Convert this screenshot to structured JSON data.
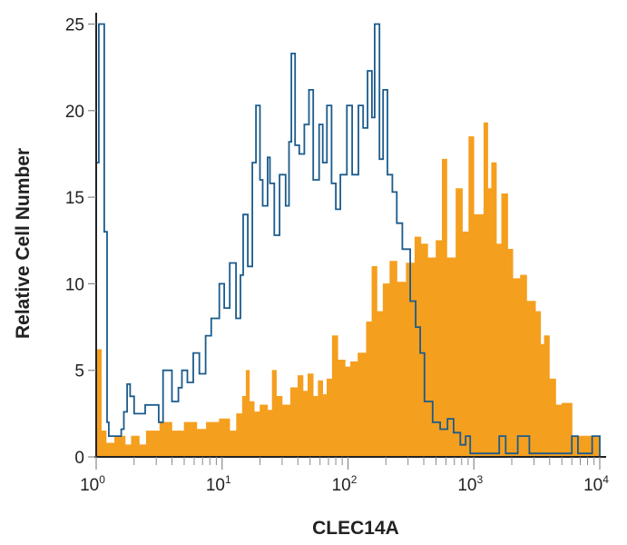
{
  "chart_data": {
    "type": "histogram",
    "title": "",
    "xlabel": "CLEC14A",
    "ylabel": "Relative Cell Number",
    "x_scale": "log",
    "xlim": [
      1,
      10000
    ],
    "ylim": [
      0,
      25
    ],
    "x_ticks": [
      {
        "base": "10",
        "exp": "0",
        "value": 1
      },
      {
        "base": "10",
        "exp": "1",
        "value": 10
      },
      {
        "base": "10",
        "exp": "2",
        "value": 100
      },
      {
        "base": "10",
        "exp": "3",
        "value": 1000
      },
      {
        "base": "10",
        "exp": "4",
        "value": 10000
      }
    ],
    "y_ticks": [
      "0",
      "5",
      "10",
      "15",
      "20",
      "25"
    ],
    "grid": false,
    "legend": "none",
    "series": [
      {
        "style": "filled",
        "color": "#f59f1e",
        "points": [
          [
            1.0,
            6.2
          ],
          [
            1.1,
            1.5
          ],
          [
            1.2,
            0.8
          ],
          [
            1.4,
            1.2
          ],
          [
            1.7,
            0.7
          ],
          [
            1.9,
            1.2
          ],
          [
            2.2,
            0.7
          ],
          [
            2.5,
            1.5
          ],
          [
            3.2,
            2.0
          ],
          [
            4.0,
            1.5
          ],
          [
            5.0,
            2.0
          ],
          [
            6.3,
            1.6
          ],
          [
            7.5,
            2.0
          ],
          [
            9.5,
            2.2
          ],
          [
            11.5,
            1.5
          ],
          [
            13,
            2.5
          ],
          [
            14.5,
            3.5
          ],
          [
            15.5,
            5
          ],
          [
            16.5,
            3.2
          ],
          [
            18,
            2.6
          ],
          [
            20,
            3
          ],
          [
            23,
            2.7
          ],
          [
            25,
            5
          ],
          [
            27,
            3.5
          ],
          [
            30,
            3
          ],
          [
            35,
            4
          ],
          [
            40,
            4.7
          ],
          [
            44,
            3.8
          ],
          [
            48,
            4.8
          ],
          [
            53,
            3.5
          ],
          [
            58,
            4.4
          ],
          [
            63,
            3.6
          ],
          [
            68,
            4.5
          ],
          [
            75,
            7
          ],
          [
            83,
            5.6
          ],
          [
            95,
            5.2
          ],
          [
            105,
            5.5
          ],
          [
            120,
            6
          ],
          [
            140,
            7.8
          ],
          [
            155,
            11
          ],
          [
            170,
            8.4
          ],
          [
            190,
            10
          ],
          [
            215,
            11.3
          ],
          [
            245,
            10.1
          ],
          [
            290,
            11.2
          ],
          [
            340,
            12.7
          ],
          [
            380,
            12.3
          ],
          [
            430,
            11.5
          ],
          [
            500,
            12.5
          ],
          [
            560,
            17.2
          ],
          [
            610,
            11.5
          ],
          [
            720,
            15.5
          ],
          [
            810,
            13
          ],
          [
            910,
            18.5
          ],
          [
            1000,
            14
          ],
          [
            1200,
            19.3
          ],
          [
            1290,
            15.5
          ],
          [
            1380,
            17
          ],
          [
            1510,
            12.3
          ],
          [
            1660,
            15.2
          ],
          [
            1860,
            12
          ],
          [
            2040,
            10.3
          ],
          [
            2340,
            10.5
          ],
          [
            2630,
            9
          ],
          [
            3090,
            8.4
          ],
          [
            3390,
            6.5
          ],
          [
            3630,
            7
          ],
          [
            3980,
            4.5
          ],
          [
            4470,
            3
          ],
          [
            5000,
            3.1
          ],
          [
            5750,
            3.1
          ],
          [
            6030,
            1.2
          ],
          [
            10000,
            1.2
          ]
        ]
      },
      {
        "style": "outline",
        "color": "#1b5b8c",
        "points": [
          [
            1.0,
            17
          ],
          [
            1.05,
            25
          ],
          [
            1.16,
            13
          ],
          [
            1.22,
            2
          ],
          [
            1.26,
            1.2
          ],
          [
            1.58,
            1.6
          ],
          [
            1.66,
            2.6
          ],
          [
            1.76,
            4.2
          ],
          [
            1.86,
            3.5
          ],
          [
            2.0,
            2.5
          ],
          [
            2.45,
            3
          ],
          [
            3.14,
            2
          ],
          [
            3.4,
            5
          ],
          [
            4.0,
            3.2
          ],
          [
            4.5,
            4
          ],
          [
            4.8,
            5
          ],
          [
            5.3,
            4.3
          ],
          [
            5.9,
            6
          ],
          [
            6.6,
            4.8
          ],
          [
            7.4,
            7
          ],
          [
            8.2,
            8
          ],
          [
            9.5,
            10
          ],
          [
            10.4,
            8.6
          ],
          [
            11.5,
            11.2
          ],
          [
            12.9,
            8
          ],
          [
            14,
            10.5
          ],
          [
            14.7,
            14
          ],
          [
            16,
            11
          ],
          [
            17.4,
            17
          ],
          [
            18.6,
            20.3
          ],
          [
            20,
            16
          ],
          [
            21,
            14.5
          ],
          [
            23,
            17.3
          ],
          [
            24,
            15.8
          ],
          [
            26,
            12.8
          ],
          [
            28.6,
            16.3
          ],
          [
            32,
            14.5
          ],
          [
            34,
            18.2
          ],
          [
            35.5,
            23.3
          ],
          [
            38,
            18
          ],
          [
            41,
            17.5
          ],
          [
            45,
            19.2
          ],
          [
            49,
            21.2
          ],
          [
            53,
            16
          ],
          [
            59,
            19.2
          ],
          [
            63,
            17
          ],
          [
            68,
            20.3
          ],
          [
            74,
            15.8
          ],
          [
            80,
            14.3
          ],
          [
            87,
            16.3
          ],
          [
            98,
            20.3
          ],
          [
            108,
            16.3
          ],
          [
            121,
            20.3
          ],
          [
            132,
            19
          ],
          [
            143,
            22.3
          ],
          [
            155,
            19.6
          ],
          [
            163,
            25
          ],
          [
            178,
            17.2
          ],
          [
            190,
            21.2
          ],
          [
            206,
            16.3
          ],
          [
            225,
            15.3
          ],
          [
            244,
            13.5
          ],
          [
            270,
            12
          ],
          [
            312,
            9
          ],
          [
            345,
            7.5
          ],
          [
            375,
            6
          ],
          [
            405,
            3.2
          ],
          [
            470,
            2
          ],
          [
            540,
            1.6
          ],
          [
            617,
            2.2
          ],
          [
            690,
            1.4
          ],
          [
            780,
            0.7
          ],
          [
            860,
            1.2
          ],
          [
            935,
            0.2
          ],
          [
            1590,
            1.2
          ],
          [
            1790,
            0.2
          ],
          [
            2230,
            1.2
          ],
          [
            2760,
            0.2
          ],
          [
            6000,
            1.2
          ],
          [
            6700,
            0.2
          ],
          [
            8700,
            1.2
          ],
          [
            10000,
            1.2
          ]
        ]
      }
    ]
  }
}
